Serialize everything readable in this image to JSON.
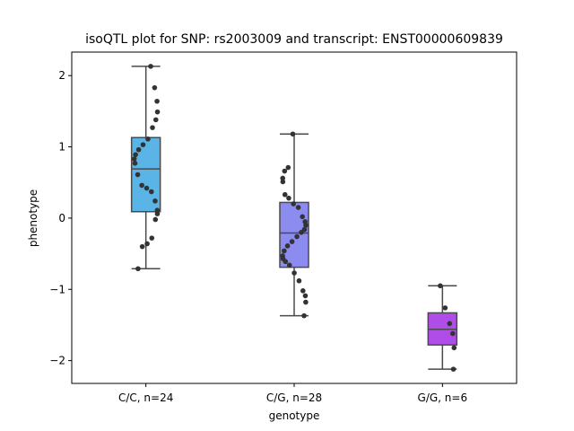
{
  "chart_data": {
    "type": "box",
    "title": "isoQTL plot for SNP: rs2003009 and transcript: ENST00000609839",
    "xlabel": "genotype",
    "ylabel": "phenotype",
    "ylim": [
      -2.32,
      2.33
    ],
    "yticks": [
      2,
      1,
      0,
      -1,
      -2
    ],
    "ytick_labels": [
      "2",
      "1",
      "0",
      "−1",
      "−2"
    ],
    "categories": [
      "C/C, n=24",
      "C/G, n=28",
      "G/G, n=6"
    ],
    "colors": [
      "#5ab4e5",
      "#8c8cf0",
      "#b04de8"
    ],
    "grid": false,
    "boxes": [
      {
        "whisker_low": -0.71,
        "q1": 0.09,
        "median": 0.69,
        "q3": 1.13,
        "whisker_high": 2.13
      },
      {
        "whisker_low": -1.37,
        "q1": -0.69,
        "median": -0.21,
        "q3": 0.22,
        "whisker_high": 1.18
      },
      {
        "whisker_low": -2.12,
        "q1": -1.78,
        "median": -1.56,
        "q3": -1.33,
        "whisker_high": -0.95
      }
    ],
    "points": [
      [
        2.13,
        1.83,
        1.64,
        1.49,
        1.38,
        1.27,
        1.11,
        1.03,
        0.96,
        0.89,
        0.83,
        0.77,
        0.61,
        0.46,
        0.42,
        0.37,
        0.24,
        0.11,
        0.06,
        -0.02,
        -0.28,
        -0.36,
        -0.4,
        -0.71
      ],
      [
        1.18,
        0.71,
        0.66,
        0.56,
        0.51,
        0.33,
        0.28,
        0.2,
        0.15,
        0.02,
        -0.05,
        -0.1,
        -0.16,
        -0.2,
        -0.26,
        -0.33,
        -0.39,
        -0.46,
        -0.53,
        -0.57,
        -0.61,
        -0.66,
        -0.77,
        -0.88,
        -1.02,
        -1.09,
        -1.18,
        -1.37
      ],
      [
        -0.95,
        -1.26,
        -1.48,
        -1.62,
        -1.82,
        -2.12
      ]
    ]
  }
}
